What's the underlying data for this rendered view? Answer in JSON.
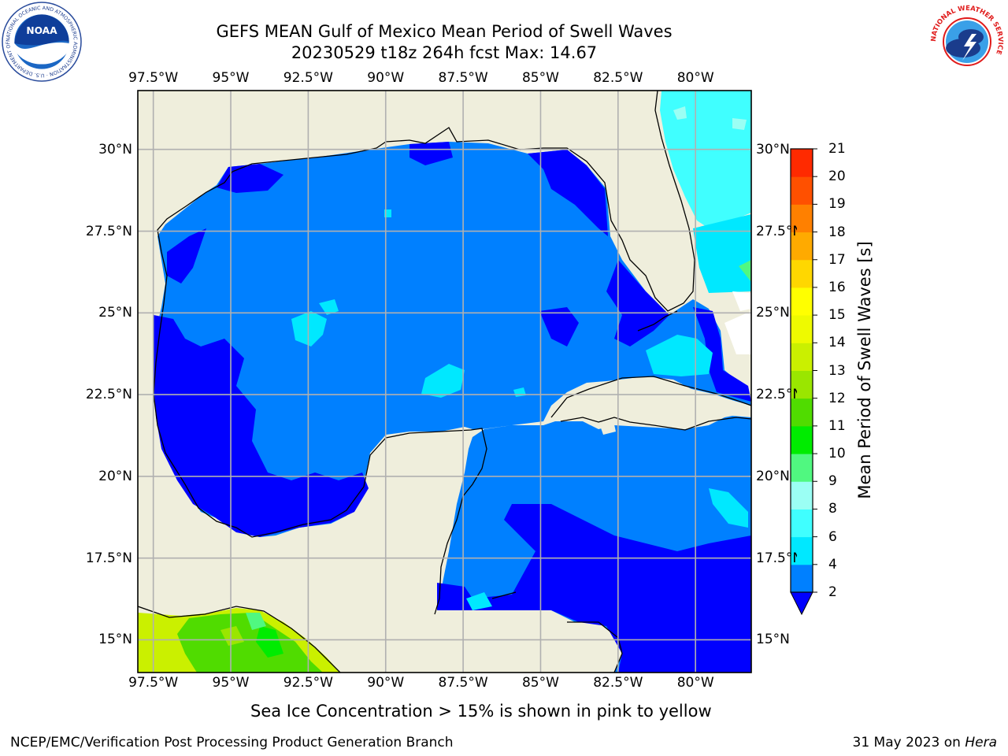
{
  "title": {
    "line1": "GEFS MEAN Gulf of Mexico Mean Period of Swell Waves",
    "line2": "20230529 t18z 264h fcst   Max: 14.67"
  },
  "logos": {
    "noaa": {
      "text": "NOAA",
      "ring": "NATIONAL OCEANIC AND ATMOSPHERIC ADMINISTRATION · U.S. DEPARTMENT OF COMMERCE"
    },
    "nws": {
      "ring": "NATIONAL WEATHER SERVICE"
    }
  },
  "map": {
    "lon_labels": [
      "97.5°W",
      "95°W",
      "92.5°W",
      "90°W",
      "87.5°W",
      "85°W",
      "82.5°W",
      "80°W"
    ],
    "lat_labels": [
      "30°N",
      "27.5°N",
      "25°N",
      "22.5°N",
      "20°N",
      "17.5°N",
      "15°N"
    ],
    "lat_labels_right": [
      "30°N",
      "27.5°N",
      "25°N",
      "22.5°N",
      "20°N",
      "17.5°N",
      "15°N"
    ],
    "lon_range": [
      -98,
      -78.2
    ],
    "lat_range": [
      14,
      31.8
    ],
    "colors": {
      "land": "#efeedc",
      "grid": "#b0b0b0",
      "coast": "#000000"
    }
  },
  "colorbar": {
    "label": "Mean Period of Swell Waves [s]",
    "ticks": [
      "2",
      "4",
      "6",
      "8",
      "9",
      "10",
      "11",
      "12",
      "13",
      "14",
      "15",
      "16",
      "17",
      "18",
      "19",
      "20",
      "21"
    ],
    "colors": [
      "#0080ff",
      "#00e8ff",
      "#40ffff",
      "#9bfff4",
      "#50f880",
      "#00ec00",
      "#50dc00",
      "#9ae600",
      "#caf000",
      "#eefa00",
      "#ffff00",
      "#ffd700",
      "#ffaa00",
      "#ff8000",
      "#ff5000",
      "#ff2a00"
    ],
    "extend_color": "#0000ff"
  },
  "caption": "Sea Ice Concentration > 15% is shown in pink to yellow",
  "footer": {
    "left": "NCEP/EMC/Verification Post Processing Product Generation Branch",
    "date": "31 May 2023 on ",
    "host": "Hera"
  }
}
